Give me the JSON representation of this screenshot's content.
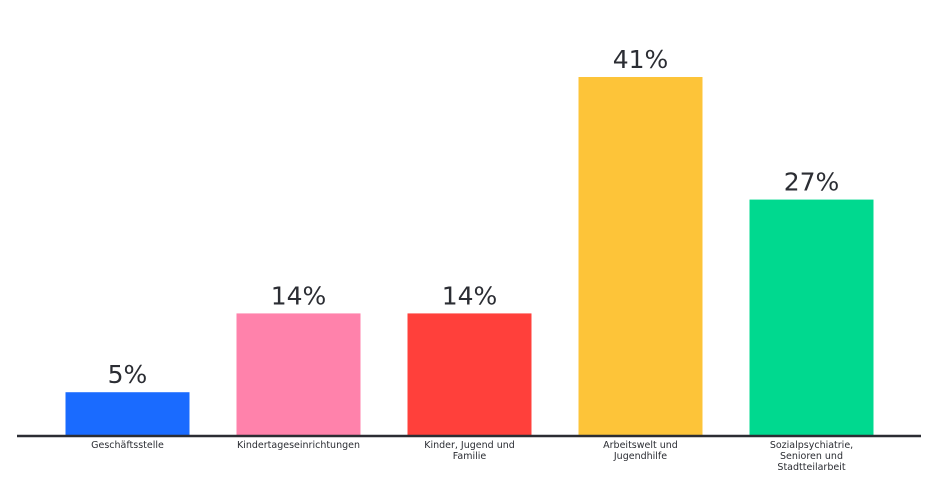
{
  "chart_data": {
    "type": "bar",
    "categories": [
      "Geschäftsstelle",
      "Kindertageseinrichtungen",
      "Kinder, Jugend und Familie",
      "Arbeitswelt und Jugendhilfe",
      "Sozialpsychiatrie, Senioren und Stadtteilarbeit"
    ],
    "category_lines": [
      [
        "Geschäftsstelle"
      ],
      [
        "Kindertageseinrichtungen"
      ],
      [
        "Kinder, Jugend und",
        "Familie"
      ],
      [
        "Arbeitswelt und",
        "Jugendhilfe"
      ],
      [
        "Sozialpsychiatrie,",
        "Senioren und",
        "Stadtteilarbeit"
      ]
    ],
    "values": [
      5,
      14,
      14,
      41,
      27
    ],
    "value_labels": [
      "5%",
      "14%",
      "14%",
      "41%",
      "27%"
    ],
    "colors": [
      "#1a6bff",
      "#ff82ab",
      "#ff403b",
      "#fdc439",
      "#00d98f"
    ],
    "ylim": [
      0,
      41
    ],
    "grid": false,
    "legend": "none",
    "title": "",
    "xlabel": "",
    "ylabel": ""
  }
}
